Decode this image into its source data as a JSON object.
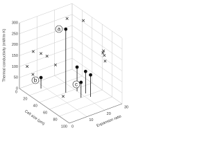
{
  "chart_data": {
    "type": "scatter3d",
    "xlabel": "Cell size (μm)",
    "ylabel": "Expansion ratio",
    "zlabel": "Thermal conductivity (mW/m·K)",
    "xlim": [
      0,
      100
    ],
    "ylim": [
      0,
      30
    ],
    "zlim": [
      0,
      300
    ],
    "xticks": [
      0,
      20,
      40,
      60,
      80,
      100
    ],
    "yticks": [
      0,
      10,
      20,
      30
    ],
    "zticks": [
      0,
      50,
      100,
      150,
      200,
      250,
      300
    ],
    "grid": true,
    "series": [
      {
        "marker": "x",
        "color": "#222222",
        "x": [
          25,
          40,
          10,
          15,
          20,
          5,
          30,
          70,
          75,
          65,
          80,
          70,
          20
        ],
        "y": [
          20,
          25,
          5,
          8,
          10,
          3,
          12,
          28,
          27,
          29,
          26,
          5,
          2
        ],
        "z": [
          300,
          300,
          170,
          160,
          150,
          100,
          120,
          200,
          190,
          180,
          175,
          60,
          90
        ]
      },
      {
        "marker": "circle",
        "stem": true,
        "color": "#111111",
        "x": [
          40,
          15,
          60,
          55,
          65,
          45
        ],
        "y": [
          15,
          8,
          18,
          22,
          22,
          20
        ],
        "z": [
          290,
          50,
          70,
          100,
          100,
          110
        ]
      }
    ],
    "annotations": [
      {
        "text": "a"
      },
      {
        "text": "b"
      },
      {
        "text": "c"
      }
    ]
  }
}
